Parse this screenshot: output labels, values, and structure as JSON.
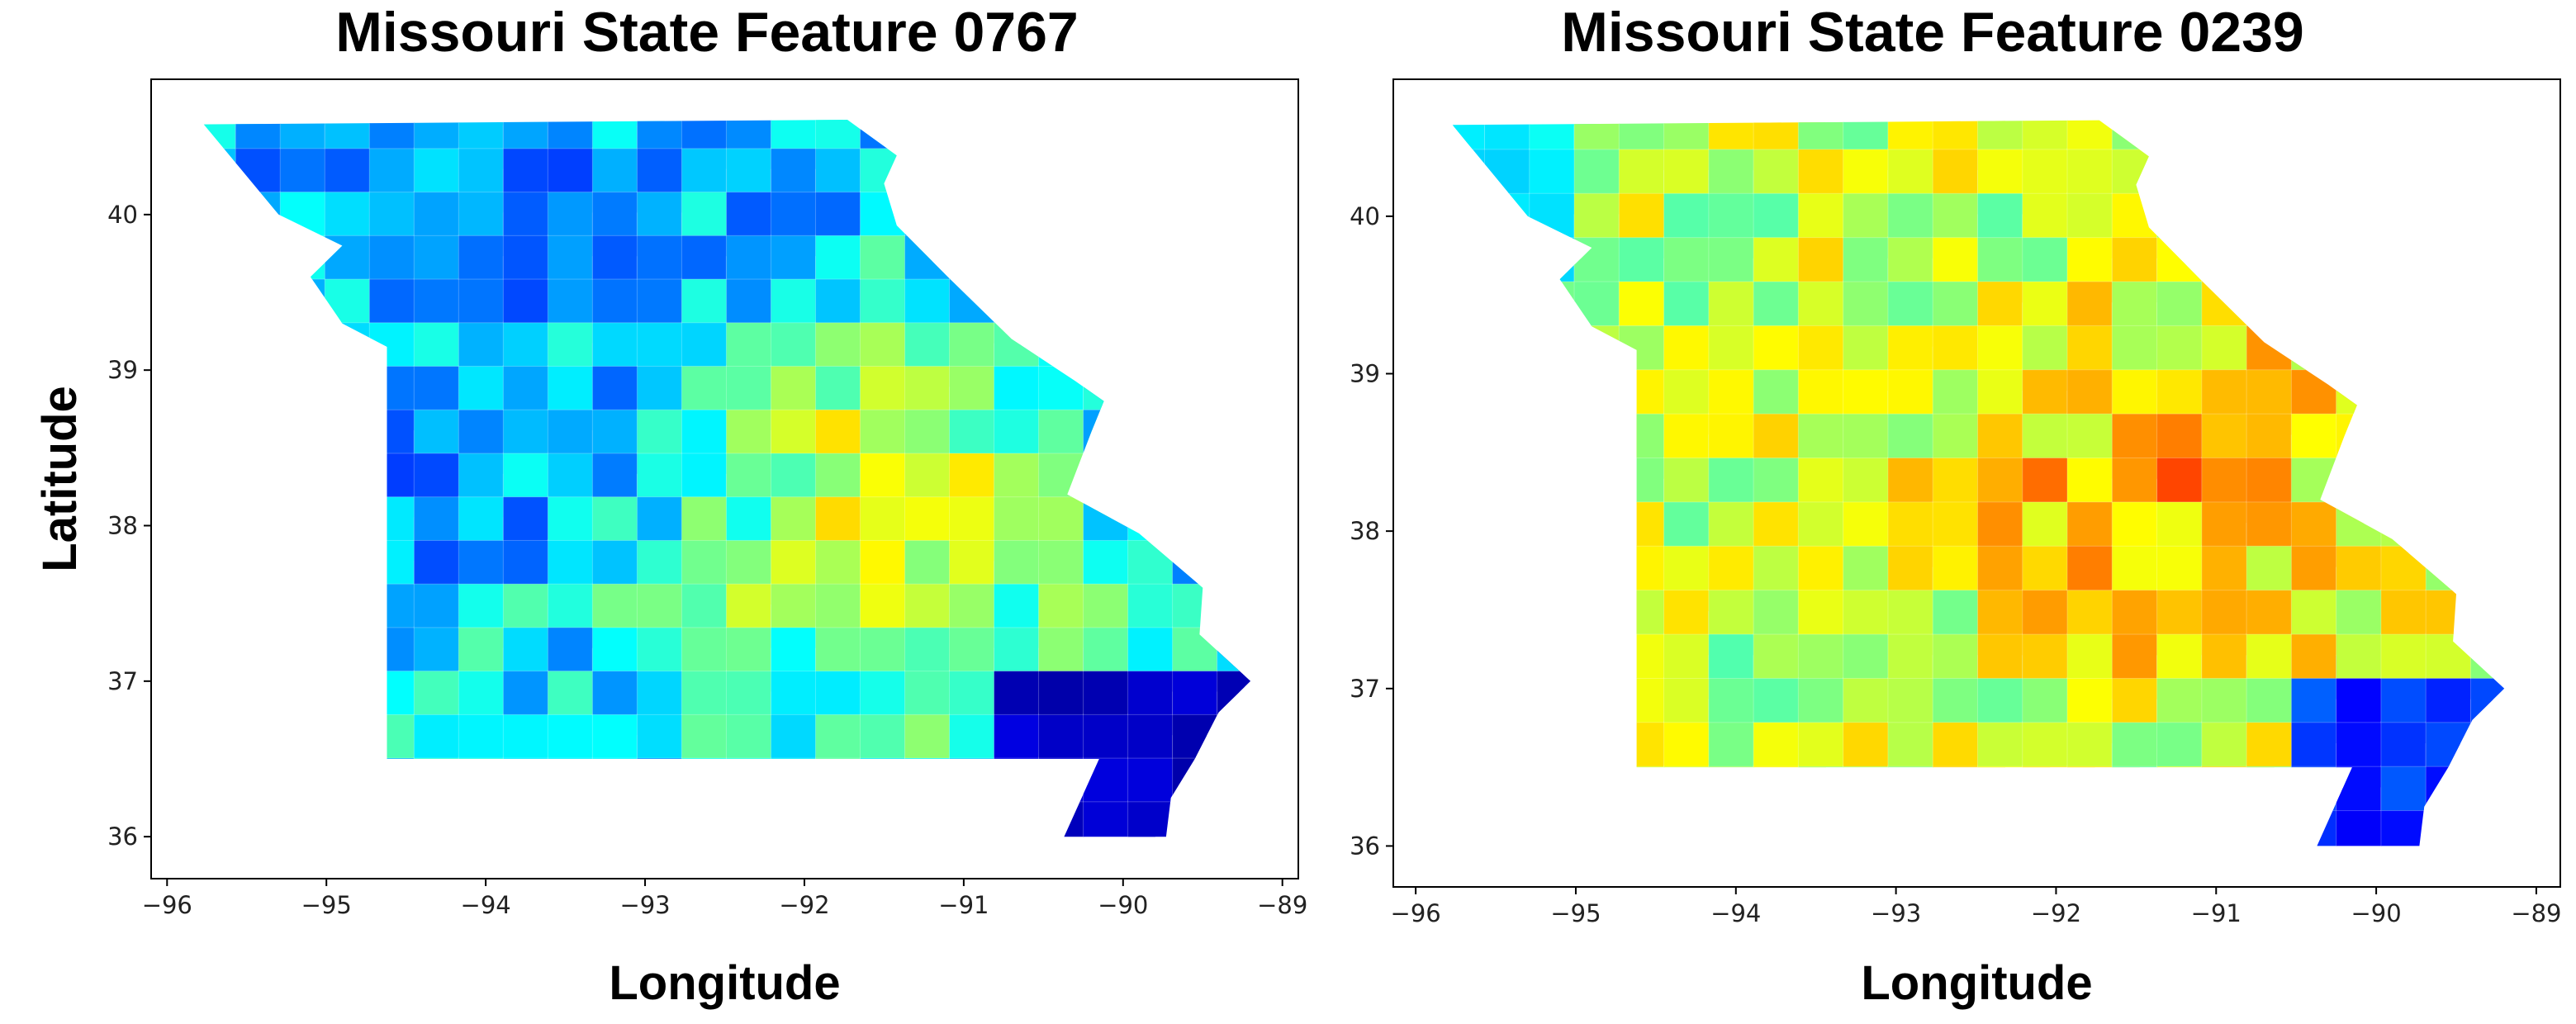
{
  "chart_data": [
    {
      "type": "map",
      "title": "Missouri State Feature 0767",
      "xlabel": "Longitude",
      "ylabel": "Latitude",
      "xlim": [
        -96.1,
        -88.9
      ],
      "ylim": [
        35.73,
        40.87
      ],
      "xticks": [
        {
          "value": -96,
          "label": "−96"
        },
        {
          "value": -95,
          "label": "−95"
        },
        {
          "value": -94,
          "label": "−94"
        },
        {
          "value": -93,
          "label": "−93"
        },
        {
          "value": -92,
          "label": "−92"
        },
        {
          "value": -91,
          "label": "−91"
        },
        {
          "value": -90,
          "label": "−90"
        },
        {
          "value": -89,
          "label": "−89"
        }
      ],
      "yticks": [
        36,
        37,
        38,
        39,
        40
      ]
    },
    {
      "type": "map",
      "title": "Missouri State Feature 0239",
      "xlabel": "Longitude",
      "xlim": [
        -96.14,
        -88.85
      ],
      "ylim": [
        35.74,
        40.87
      ],
      "xticks": [
        {
          "value": -96,
          "label": "−96"
        },
        {
          "value": -95,
          "label": "−95"
        },
        {
          "value": -94,
          "label": "−94"
        },
        {
          "value": -93,
          "label": "−93"
        },
        {
          "value": -92,
          "label": "−92"
        },
        {
          "value": -91,
          "label": "−91"
        },
        {
          "value": -90,
          "label": "−90"
        },
        {
          "value": -89,
          "label": "−89"
        }
      ],
      "yticks": [
        36,
        37,
        38,
        39,
        40
      ]
    }
  ]
}
